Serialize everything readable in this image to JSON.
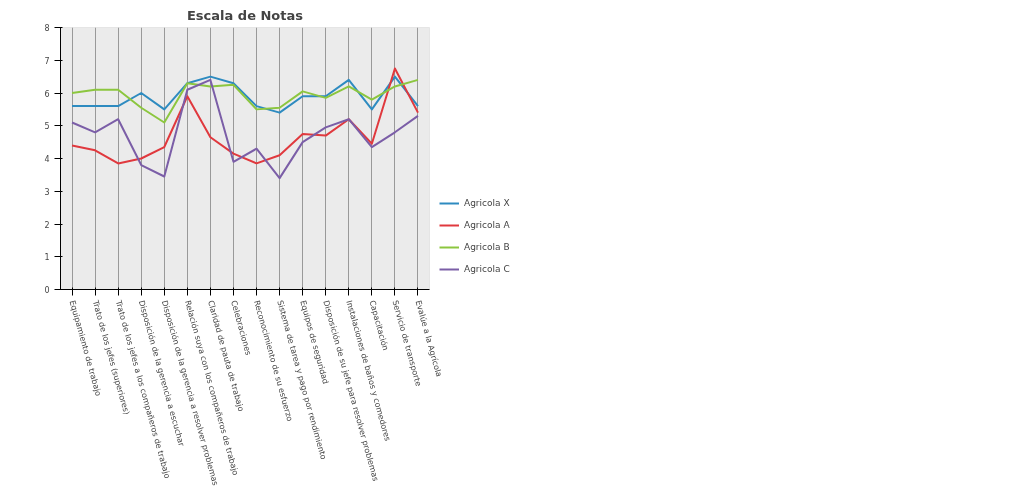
{
  "chart_data": {
    "type": "line",
    "title": "Escala de Notas",
    "categories": [
      "Equipamiento de trabajo",
      "Trato de los jefes (superiores)",
      "Trato de los jefes a los compañeros de trabajo",
      "Disposición de la gerencia a escuchar",
      "Disposición de la gerencia a resolver problemas",
      "Relación suya con los compañeros de trabajo",
      "Claridad de pauta de trabajo",
      "Celebraciones",
      "Reconocimiento de su esfuerzo",
      "Sistema de tarea y pago por rendimiento",
      "Equipos de seguridad",
      "Disposición de su jefe para resolver problemas",
      "Instalaciones de baños y comedores",
      "Capacitación",
      "Servicio de transporte",
      "Evalúe a la Agrícola"
    ],
    "series": [
      {
        "name": "Agricola X",
        "color": "#2e8bc0",
        "values": [
          5.6,
          5.6,
          5.6,
          6.0,
          5.5,
          6.3,
          6.5,
          6.3,
          5.6,
          5.4,
          5.9,
          5.9,
          6.4,
          5.5,
          6.5,
          5.6
        ]
      },
      {
        "name": "Agricola A",
        "color": "#e0393e",
        "values": [
          4.4,
          4.25,
          3.85,
          4.0,
          4.35,
          5.9,
          4.65,
          4.15,
          3.85,
          4.1,
          4.75,
          4.7,
          5.2,
          4.45,
          6.75,
          5.4
        ]
      },
      {
        "name": "Agricola B",
        "color": "#8cc63f",
        "values": [
          6.0,
          6.1,
          6.1,
          5.55,
          5.1,
          6.3,
          6.2,
          6.25,
          5.5,
          5.55,
          6.05,
          5.85,
          6.2,
          5.8,
          6.2,
          6.4
        ]
      },
      {
        "name": "Agricola C",
        "color": "#7b5ea7",
        "values": [
          5.1,
          4.8,
          5.2,
          3.8,
          3.45,
          6.1,
          6.4,
          3.9,
          4.3,
          3.4,
          4.5,
          4.95,
          5.2,
          4.35,
          4.8,
          5.3
        ]
      }
    ],
    "ylim": [
      0,
      8
    ],
    "yticks": [
      0,
      1,
      2,
      3,
      4,
      5,
      6,
      7,
      8
    ],
    "grid": "x",
    "legend": "bottom right",
    "marker": "none",
    "line_style": "solid"
  }
}
